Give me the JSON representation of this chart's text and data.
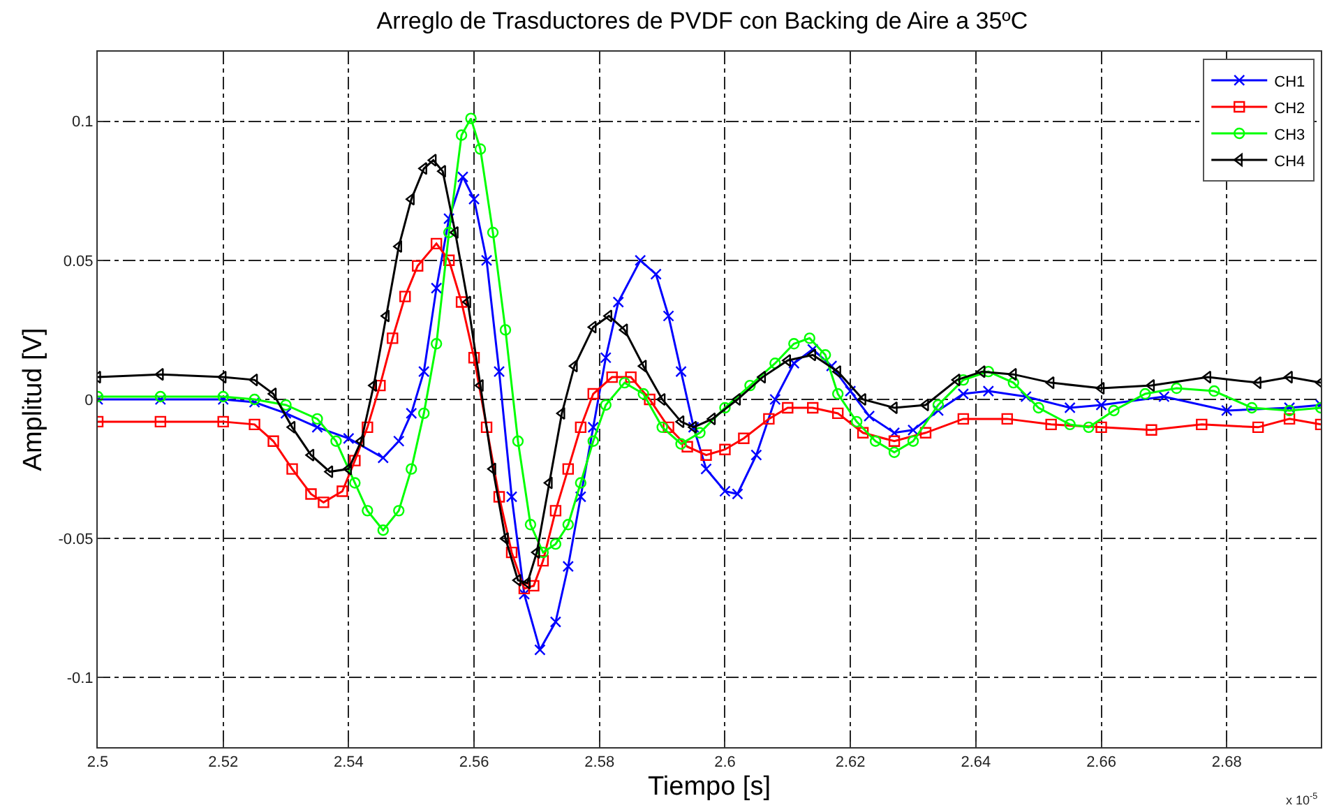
{
  "chart_data": {
    "type": "line",
    "title": "Arreglo de Trasductores de PVDF con Backing de Aire a 35ºC",
    "xlabel": "Tiempo [s]",
    "ylabel": "Amplitud [V]",
    "annotations": [
      "x 10$^{-5}$"
    ],
    "xlim": [
      2.5,
      2.695
    ],
    "xticks": [
      2.5,
      2.52,
      2.54,
      2.56,
      2.58,
      2.6,
      2.62,
      2.64,
      2.66,
      2.68
    ],
    "ylim": [
      -0.125,
      0.125
    ],
    "yticks": [
      -0.1,
      -0.05,
      0,
      0.05,
      0.1
    ],
    "grid": true,
    "legend": "top right",
    "line_style": "solid",
    "series": [
      {
        "name": "CH1",
        "color": "#0000ff",
        "marker": "cross",
        "x": [
          2.5,
          2.51,
          2.52,
          2.525,
          2.53,
          2.535,
          2.54,
          2.5455,
          2.548,
          2.55,
          2.552,
          2.554,
          2.556,
          2.5582,
          2.56,
          2.562,
          2.564,
          2.566,
          2.568,
          2.5705,
          2.573,
          2.575,
          2.577,
          2.579,
          2.581,
          2.583,
          2.5865,
          2.589,
          2.591,
          2.593,
          2.595,
          2.597,
          2.6,
          2.602,
          2.605,
          2.608,
          2.611,
          2.614,
          2.617,
          2.62,
          2.623,
          2.627,
          2.63,
          2.634,
          2.638,
          2.642,
          2.648,
          2.655,
          2.66,
          2.67,
          2.68,
          2.69,
          2.695
        ],
        "values": [
          0.0,
          0.0,
          0.0,
          -0.001,
          -0.005,
          -0.01,
          -0.014,
          -0.021,
          -0.015,
          -0.005,
          0.01,
          0.04,
          0.065,
          0.08,
          0.072,
          0.05,
          0.01,
          -0.035,
          -0.07,
          -0.09,
          -0.08,
          -0.06,
          -0.035,
          -0.01,
          0.015,
          0.035,
          0.05,
          0.045,
          0.03,
          0.01,
          -0.01,
          -0.025,
          -0.033,
          -0.034,
          -0.02,
          0.0,
          0.013,
          0.018,
          0.012,
          0.003,
          -0.006,
          -0.012,
          -0.011,
          -0.004,
          0.002,
          0.003,
          0.001,
          -0.003,
          -0.002,
          0.001,
          -0.004,
          -0.003,
          -0.002
        ]
      },
      {
        "name": "CH2",
        "color": "#ff0000",
        "marker": "square",
        "x": [
          2.5,
          2.51,
          2.52,
          2.525,
          2.528,
          2.531,
          2.534,
          2.536,
          2.539,
          2.541,
          2.543,
          2.545,
          2.547,
          2.549,
          2.551,
          2.554,
          2.556,
          2.558,
          2.56,
          2.562,
          2.564,
          2.566,
          2.568,
          2.5695,
          2.571,
          2.573,
          2.575,
          2.577,
          2.579,
          2.582,
          2.585,
          2.588,
          2.591,
          2.594,
          2.597,
          2.6,
          2.603,
          2.607,
          2.61,
          2.614,
          2.618,
          2.622,
          2.627,
          2.632,
          2.638,
          2.645,
          2.652,
          2.66,
          2.668,
          2.676,
          2.685,
          2.69,
          2.695
        ],
        "values": [
          -0.008,
          -0.008,
          -0.008,
          -0.009,
          -0.015,
          -0.025,
          -0.034,
          -0.037,
          -0.033,
          -0.022,
          -0.01,
          0.005,
          0.022,
          0.037,
          0.048,
          0.056,
          0.05,
          0.035,
          0.015,
          -0.01,
          -0.035,
          -0.055,
          -0.068,
          -0.067,
          -0.058,
          -0.04,
          -0.025,
          -0.01,
          0.002,
          0.008,
          0.008,
          0.0,
          -0.01,
          -0.017,
          -0.02,
          -0.018,
          -0.014,
          -0.007,
          -0.003,
          -0.003,
          -0.005,
          -0.012,
          -0.015,
          -0.012,
          -0.007,
          -0.007,
          -0.009,
          -0.01,
          -0.011,
          -0.009,
          -0.01,
          -0.007,
          -0.009
        ]
      },
      {
        "name": "CH3",
        "color": "#00ff00",
        "marker": "circle",
        "x": [
          2.5,
          2.51,
          2.52,
          2.525,
          2.53,
          2.535,
          2.538,
          2.541,
          2.543,
          2.5455,
          2.548,
          2.55,
          2.552,
          2.554,
          2.556,
          2.558,
          2.5595,
          2.561,
          2.563,
          2.565,
          2.567,
          2.569,
          2.571,
          2.573,
          2.575,
          2.577,
          2.579,
          2.581,
          2.584,
          2.587,
          2.59,
          2.593,
          2.596,
          2.6,
          2.604,
          2.608,
          2.611,
          2.6135,
          2.616,
          2.618,
          2.621,
          2.624,
          2.627,
          2.63,
          2.634,
          2.638,
          2.642,
          2.646,
          2.65,
          2.655,
          2.658,
          2.662,
          2.667,
          2.672,
          2.678,
          2.684,
          2.69,
          2.695
        ],
        "values": [
          0.001,
          0.001,
          0.001,
          0.0,
          -0.002,
          -0.007,
          -0.015,
          -0.03,
          -0.04,
          -0.047,
          -0.04,
          -0.025,
          -0.005,
          0.02,
          0.06,
          0.095,
          0.101,
          0.09,
          0.06,
          0.025,
          -0.015,
          -0.045,
          -0.055,
          -0.052,
          -0.045,
          -0.03,
          -0.015,
          -0.002,
          0.006,
          0.002,
          -0.01,
          -0.016,
          -0.012,
          -0.003,
          0.005,
          0.013,
          0.02,
          0.022,
          0.016,
          0.002,
          -0.008,
          -0.015,
          -0.019,
          -0.015,
          -0.002,
          0.007,
          0.01,
          0.006,
          -0.003,
          -0.009,
          -0.01,
          -0.004,
          0.002,
          0.004,
          0.003,
          -0.003,
          -0.004,
          -0.003
        ]
      },
      {
        "name": "CH4",
        "color": "#000000",
        "marker": "triangle",
        "x": [
          2.5,
          2.51,
          2.52,
          2.525,
          2.528,
          2.531,
          2.534,
          2.537,
          2.54,
          2.542,
          2.544,
          2.546,
          2.548,
          2.55,
          2.552,
          2.5535,
          2.555,
          2.557,
          2.559,
          2.561,
          2.563,
          2.565,
          2.567,
          2.5685,
          2.57,
          2.572,
          2.574,
          2.576,
          2.579,
          2.5815,
          2.584,
          2.587,
          2.59,
          2.593,
          2.595,
          2.598,
          2.602,
          2.606,
          2.61,
          2.614,
          2.618,
          2.622,
          2.627,
          2.632,
          2.637,
          2.641,
          2.646,
          2.652,
          2.66,
          2.668,
          2.677,
          2.685,
          2.69,
          2.695
        ],
        "values": [
          0.008,
          0.009,
          0.008,
          0.007,
          0.002,
          -0.01,
          -0.02,
          -0.026,
          -0.025,
          -0.015,
          0.005,
          0.03,
          0.055,
          0.072,
          0.083,
          0.086,
          0.082,
          0.06,
          0.035,
          0.005,
          -0.025,
          -0.05,
          -0.065,
          -0.066,
          -0.055,
          -0.03,
          -0.005,
          0.012,
          0.026,
          0.03,
          0.025,
          0.012,
          0.0,
          -0.008,
          -0.01,
          -0.007,
          0.0,
          0.008,
          0.014,
          0.016,
          0.01,
          0.0,
          -0.003,
          -0.002,
          0.007,
          0.01,
          0.009,
          0.006,
          0.004,
          0.005,
          0.008,
          0.006,
          0.008,
          0.006
        ]
      }
    ]
  }
}
